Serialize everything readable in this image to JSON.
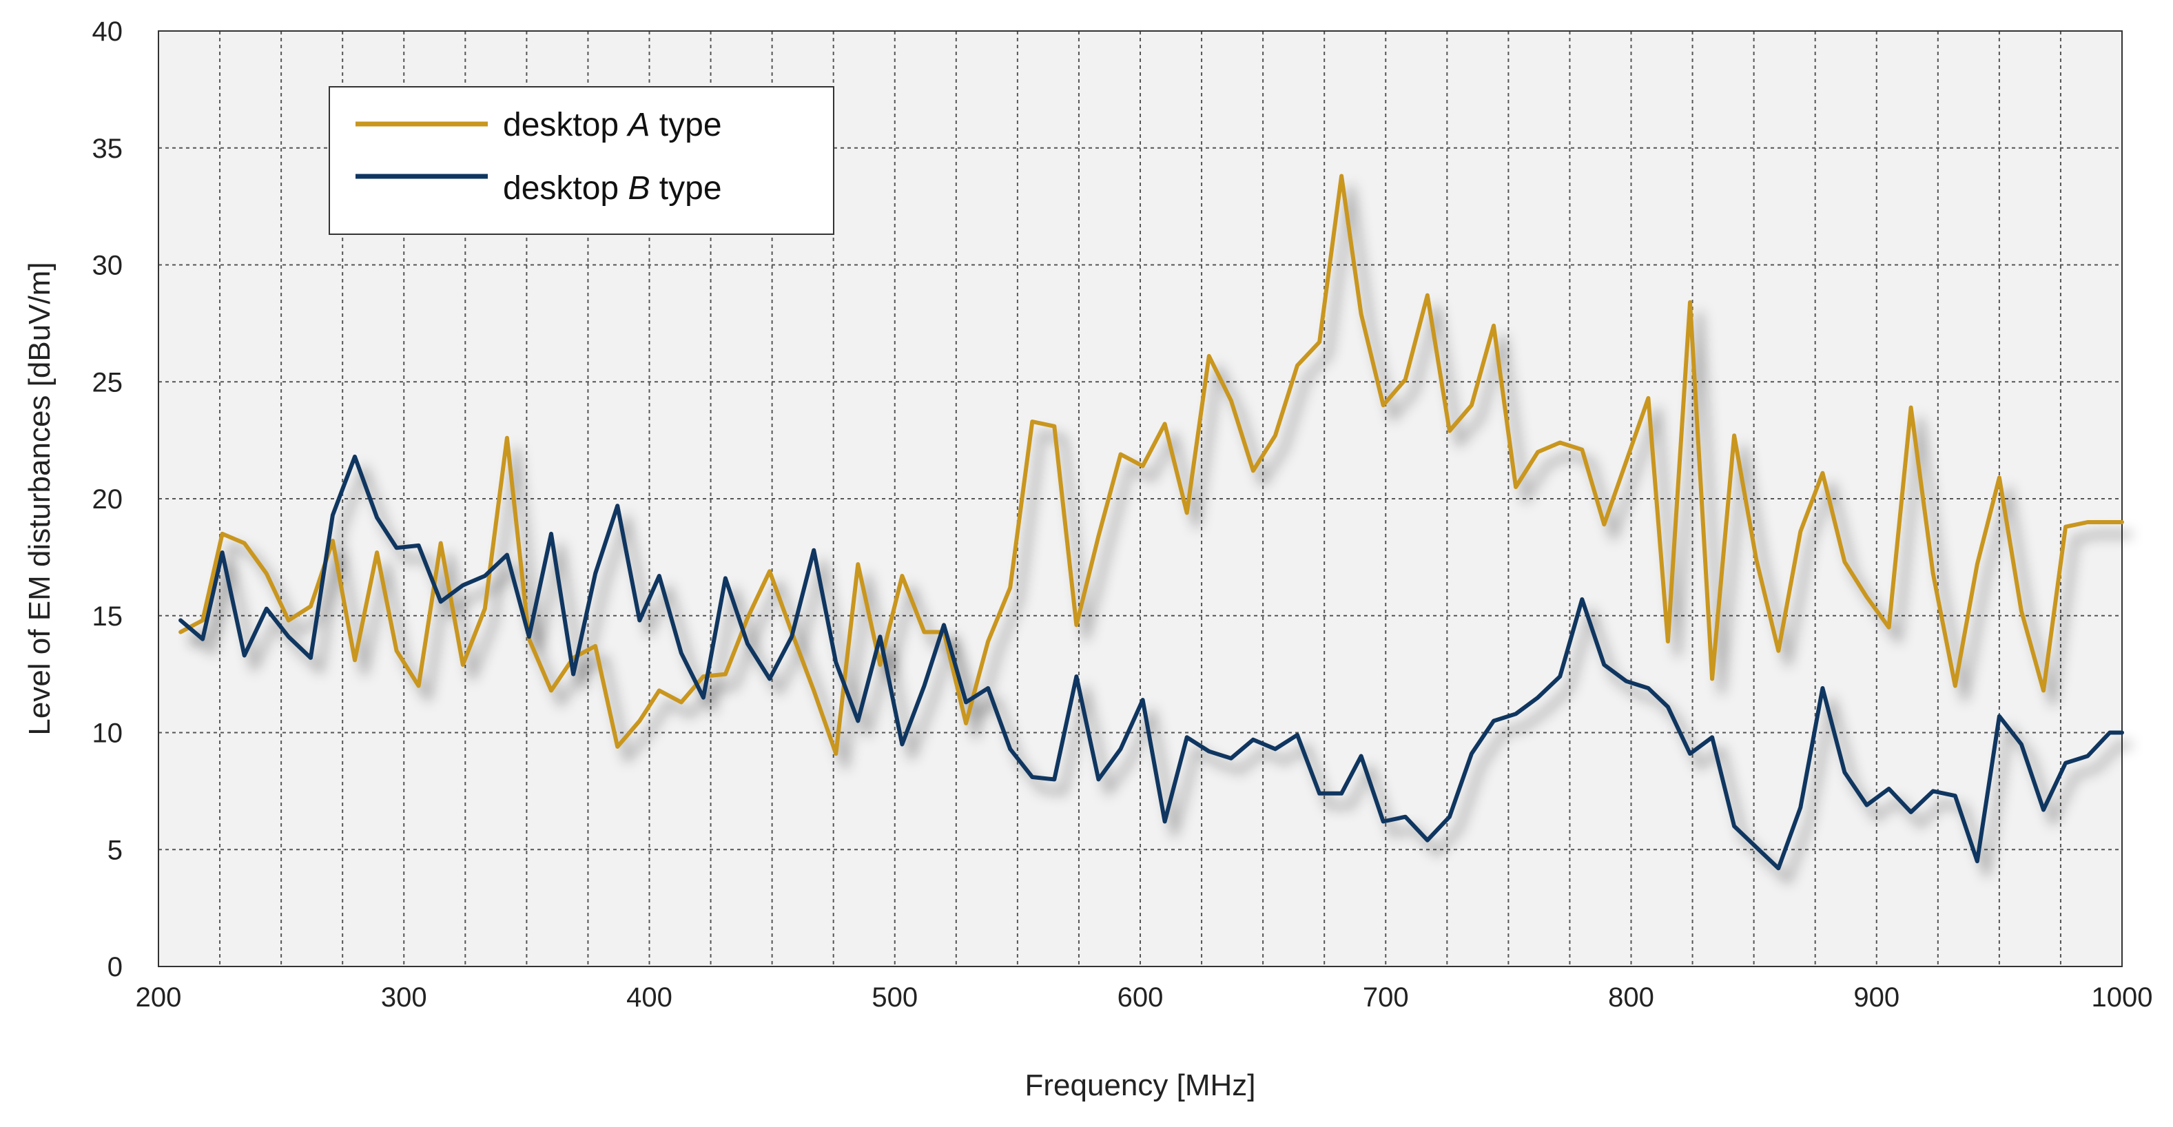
{
  "chart_data": {
    "type": "line",
    "title": "",
    "xlabel": "Frequency [MHz]",
    "ylabel": "Level of EM disturbances [dBuV/m]",
    "xlim": [
      200,
      1000
    ],
    "ylim": [
      0,
      40
    ],
    "x_ticks": [
      200,
      300,
      400,
      500,
      600,
      700,
      800,
      900,
      1000
    ],
    "y_ticks": [
      0,
      5,
      10,
      15,
      20,
      25,
      30,
      35,
      40
    ],
    "x_minor_grid_step": 25,
    "grid": true,
    "legend_position": "top-left",
    "colors": {
      "seriesA": "#C9961E",
      "seriesB": "#0F3660",
      "grid": "#555555",
      "plot_bg": "#F2F2F2"
    },
    "series": [
      {
        "name": "desktop A type",
        "legend_parts": [
          "desktop ",
          "A",
          " type"
        ],
        "x": [
          209,
          218,
          226,
          235,
          244,
          253,
          262,
          271,
          280,
          289,
          297,
          306,
          315,
          324,
          333,
          342,
          351,
          360,
          369,
          378,
          387,
          396,
          404,
          413,
          422,
          431,
          440,
          449,
          458,
          467,
          476,
          485,
          494,
          503,
          512,
          520,
          529,
          538,
          547,
          556,
          565,
          574,
          583,
          592,
          601,
          610,
          619,
          628,
          637,
          646,
          655,
          664,
          673,
          682,
          690,
          699,
          708,
          717,
          726,
          735,
          744,
          753,
          762,
          771,
          780,
          789,
          798,
          807,
          815,
          824,
          833,
          842,
          851,
          860,
          869,
          878,
          887,
          896,
          905,
          914,
          923,
          932,
          941,
          950,
          959,
          968,
          977,
          986,
          995,
          1000
        ],
        "y": [
          14.3,
          14.8,
          18.5,
          18.1,
          16.8,
          14.8,
          15.4,
          18.2,
          13.1,
          17.7,
          13.5,
          12.0,
          18.1,
          12.9,
          15.3,
          22.6,
          14.0,
          11.8,
          13.2,
          13.7,
          9.4,
          10.5,
          11.8,
          11.3,
          12.4,
          12.5,
          14.9,
          16.9,
          14.3,
          11.8,
          9.1,
          17.2,
          12.9,
          16.7,
          14.3,
          14.3,
          10.4,
          13.9,
          16.2,
          23.3,
          23.1,
          14.6,
          18.4,
          21.9,
          21.4,
          23.2,
          19.4,
          26.1,
          24.2,
          21.2,
          22.7,
          25.7,
          26.7,
          33.8,
          27.9,
          24.0,
          25.1,
          28.7,
          22.9,
          24.0,
          27.4,
          20.5,
          22.0,
          22.4,
          22.1,
          18.9,
          21.6,
          24.3,
          13.9,
          28.4,
          12.3,
          22.7,
          17.4,
          13.5,
          18.6,
          21.1,
          17.3,
          15.8,
          14.5,
          23.9,
          16.8,
          12.0,
          17.2,
          20.9,
          15.2,
          11.8,
          18.8,
          19.0,
          19.0,
          19.0
        ]
      },
      {
        "name": "desktop B type",
        "legend_parts": [
          "desktop ",
          "B",
          " type"
        ],
        "x": [
          209,
          218,
          226,
          235,
          244,
          253,
          262,
          271,
          280,
          289,
          297,
          306,
          315,
          324,
          333,
          342,
          351,
          360,
          369,
          378,
          387,
          396,
          404,
          413,
          422,
          431,
          440,
          449,
          458,
          467,
          476,
          485,
          494,
          503,
          512,
          520,
          529,
          538,
          547,
          556,
          565,
          574,
          583,
          592,
          601,
          610,
          619,
          628,
          637,
          646,
          655,
          664,
          673,
          682,
          690,
          699,
          708,
          717,
          726,
          735,
          744,
          753,
          762,
          771,
          780,
          789,
          798,
          807,
          815,
          824,
          833,
          842,
          851,
          860,
          869,
          878,
          887,
          896,
          905,
          914,
          923,
          932,
          941,
          950,
          959,
          968,
          977,
          986,
          995,
          1000
        ],
        "y": [
          14.8,
          14.0,
          17.7,
          13.3,
          15.3,
          14.1,
          13.2,
          19.3,
          21.8,
          19.2,
          17.9,
          18.0,
          15.6,
          16.3,
          16.7,
          17.6,
          14.1,
          18.5,
          12.5,
          16.8,
          19.7,
          14.8,
          16.7,
          13.4,
          11.5,
          16.6,
          13.8,
          12.3,
          14.1,
          17.8,
          13.0,
          10.5,
          14.1,
          9.5,
          12.0,
          14.6,
          11.3,
          11.9,
          9.3,
          8.1,
          8.0,
          12.4,
          8.0,
          9.3,
          11.4,
          6.2,
          9.8,
          9.2,
          8.9,
          9.7,
          9.3,
          9.9,
          7.4,
          7.4,
          9.0,
          6.2,
          6.4,
          5.4,
          6.4,
          9.1,
          10.5,
          10.8,
          11.5,
          12.4,
          15.7,
          12.9,
          12.2,
          11.9,
          11.1,
          9.1,
          9.8,
          6.0,
          5.1,
          4.2,
          6.8,
          11.9,
          8.3,
          6.9,
          7.6,
          6.6,
          7.5,
          7.3,
          4.5,
          10.7,
          9.5,
          6.7,
          8.7,
          9.0,
          10.0,
          10.0
        ]
      }
    ]
  }
}
